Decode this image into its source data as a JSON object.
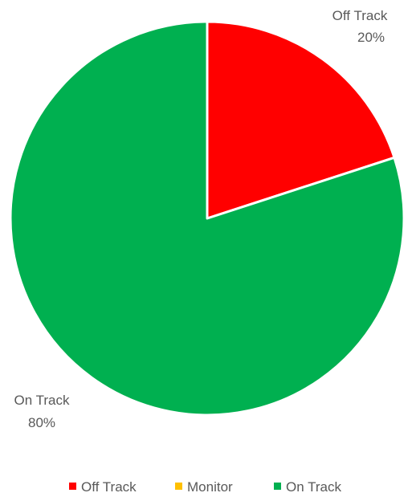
{
  "chart_data": {
    "type": "pie",
    "title": "",
    "slices": [
      {
        "label": "Off Track",
        "value": 20,
        "percent_label": "20%",
        "color": "#ff0000"
      },
      {
        "label": "Monitor",
        "value": 0,
        "percent_label": "0%",
        "color": "#ffc000"
      },
      {
        "label": "On Track",
        "value": 80,
        "percent_label": "80%",
        "color": "#00b050"
      }
    ],
    "legend": {
      "position": "bottom",
      "entries": [
        "Off Track",
        "Monitor",
        "On Track"
      ]
    },
    "start_angle": "12 o'clock",
    "direction": "clockwise"
  }
}
